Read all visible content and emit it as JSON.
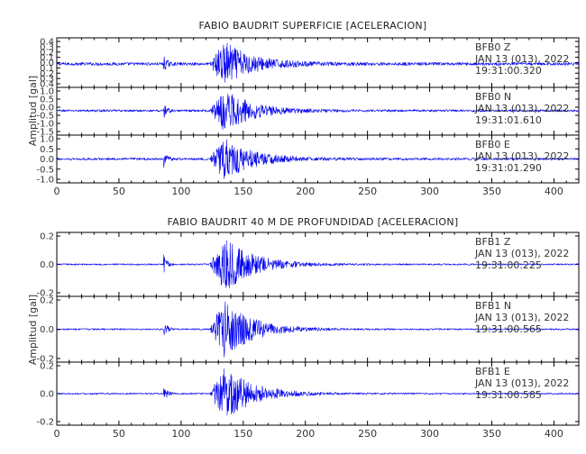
{
  "chart_data": [
    {
      "type": "line",
      "title": "FABIO BAUDRIT SUPERFICIE [ACELERACION]",
      "ylabel": "Amplitud [gal]",
      "xlabel": "",
      "xlim": [
        0,
        420
      ],
      "xticks": [
        "0",
        "50",
        "100",
        "150",
        "200",
        "250",
        "300",
        "350",
        "400"
      ],
      "channels": [
        {
          "station": "BFB0",
          "component": "Z",
          "date": "JAN 13 (013), 2022",
          "time": "19:31:00.320",
          "ylim": [
            -0.45,
            0.5
          ],
          "yticks": [
            "0.4",
            "0.3",
            "0.2",
            "0.1",
            "0.0",
            "0.1",
            "0.2",
            "0.3",
            "0.4"
          ],
          "peak": 0.42,
          "noise": 0.03,
          "p_arrival": 86,
          "s_arrival": 123
        },
        {
          "station": "BFB0",
          "component": "N",
          "date": "JAN 13 (013), 2022",
          "time": "19:31:01.610",
          "ylim": [
            -1.1,
            1.05
          ],
          "yticks": [
            "1.0",
            "0.5",
            "0.0",
            "-0.5",
            "-1.0",
            "-1.5"
          ],
          "peak": 0.95,
          "noise": 0.05,
          "p_arrival": 86,
          "s_arrival": 123
        },
        {
          "station": "BFB0",
          "component": "E",
          "date": "JAN 13 (013), 2022",
          "time": "19:31:01.290",
          "ylim": [
            -1.05,
            1.05
          ],
          "yticks": [
            "1.0",
            "0.5",
            "0.0",
            "-0.5",
            "-1.0"
          ],
          "peak": 0.95,
          "noise": 0.05,
          "p_arrival": 86,
          "s_arrival": 123
        }
      ]
    },
    {
      "type": "line",
      "title": "FABIO BAUDRIT 40 M DE PROFUNDIDAD [ACELERACION]",
      "ylabel": "Amplitud [gal]",
      "xlabel": "",
      "xlim": [
        0,
        420
      ],
      "xticks": [
        "0",
        "50",
        "100",
        "150",
        "200",
        "250",
        "300",
        "350",
        "400"
      ],
      "channels": [
        {
          "station": "BFB1",
          "component": "Z",
          "date": "JAN 13 (013), 2022",
          "time": "19:31:00.225",
          "ylim": [
            -0.25,
            0.25
          ],
          "yticks": [
            "0.2",
            "0.0",
            "-0.2"
          ],
          "peak": 0.22,
          "noise": 0.006,
          "p_arrival": 86,
          "s_arrival": 123
        },
        {
          "station": "BFB1",
          "component": "N",
          "date": "JAN 13 (013), 2022",
          "time": "19:31:00.565",
          "ylim": [
            -0.25,
            0.25
          ],
          "yticks": [
            "0.2",
            "0.0",
            "-0.2"
          ],
          "peak": 0.22,
          "noise": 0.006,
          "p_arrival": 86,
          "s_arrival": 123
        },
        {
          "station": "BFB1",
          "component": "E",
          "date": "JAN 13 (013), 2022",
          "time": "19:31:00.585",
          "ylim": [
            -0.25,
            0.25
          ],
          "yticks": [
            "0.2",
            "0.0",
            "-0.2"
          ],
          "peak": 0.22,
          "noise": 0.006,
          "p_arrival": 86,
          "s_arrival": 123
        }
      ]
    }
  ],
  "colors": {
    "trace": "#0000ee",
    "frame": "#000000",
    "text": "#333333"
  }
}
